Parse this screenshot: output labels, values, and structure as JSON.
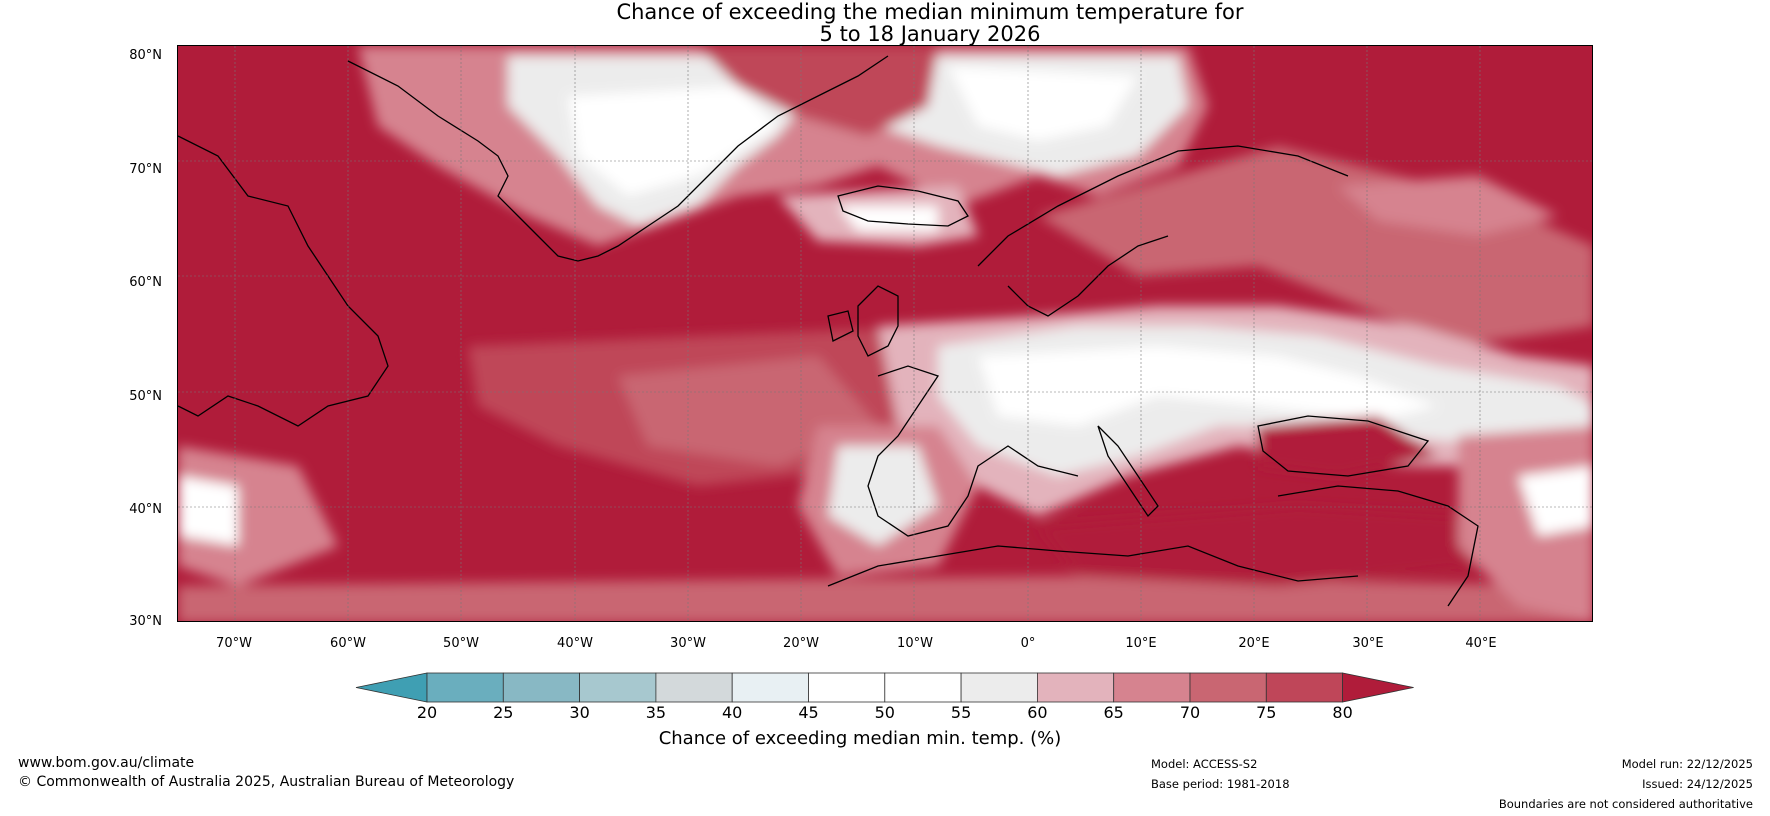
{
  "title": {
    "line1": "Chance of exceeding the median minimum temperature for",
    "line2": "5 to 18 January 2026"
  },
  "latitude_ticks": [
    "80°N",
    "70°N",
    "60°N",
    "50°N",
    "40°N",
    "30°N"
  ],
  "longitude_ticks": [
    "70°W",
    "60°W",
    "50°W",
    "40°W",
    "30°W",
    "20°W",
    "10°W",
    "0°",
    "10°E",
    "20°E",
    "30°E",
    "40°E"
  ],
  "colorbar": {
    "title": "Chance of exceeding median min. temp. (%)",
    "tick_labels": [
      "20",
      "25",
      "30",
      "35",
      "40",
      "45",
      "50",
      "55",
      "60",
      "65",
      "70",
      "75",
      "80"
    ],
    "colors": [
      "#3f9fb3",
      "#6aaebe",
      "#88b8c4",
      "#a7c8cf",
      "#d3d9db",
      "#e8f0f3",
      "#ffffff",
      "#ffffff",
      "#ececec",
      "#e3b3bc",
      "#d6838f",
      "#c96672",
      "#bf4659",
      "#b01c3a"
    ],
    "range": [
      20,
      80
    ]
  },
  "map": {
    "region": "North Atlantic and Europe",
    "lat_range": [
      30,
      80
    ],
    "lon_range": [
      -75,
      50
    ],
    "dominant_color": "#b01c3a"
  },
  "footer": {
    "website": "www.bom.gov.au/climate",
    "copyright": "© Commonwealth of Australia 2025, Australian Bureau of Meteorology",
    "model": "Model: ACCESS-S2",
    "base_period": "Base period: 1981-2018",
    "model_run": "Model run: 22/12/2025",
    "issued": "Issued: 24/12/2025",
    "boundaries_note": "Boundaries are not considered authoritative"
  }
}
